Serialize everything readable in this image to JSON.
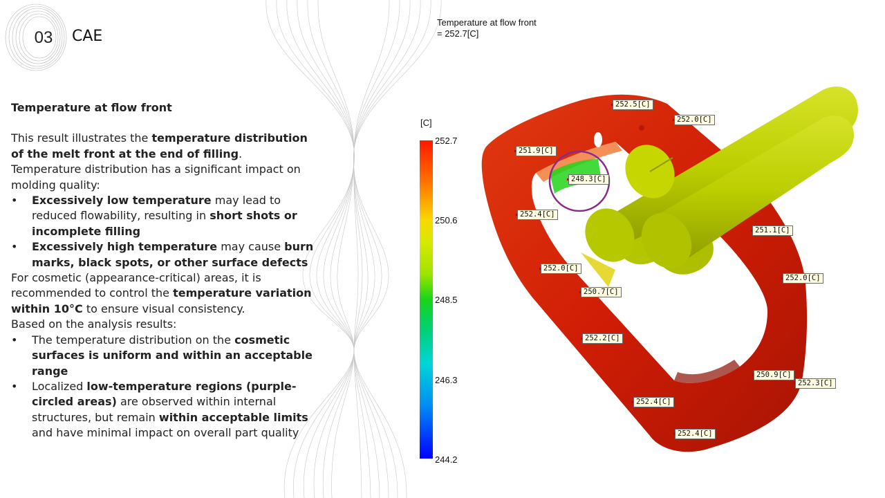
{
  "header": {
    "number": "03",
    "title": "CAE"
  },
  "content": {
    "heading": "Temperature at flow front",
    "intro": {
      "pre": "This result illustrates the ",
      "bold": "temperature distribution of the melt front at the end of filling",
      "post": "."
    },
    "impact": "Temperature distribution has a significant impact on molding quality:",
    "risks": [
      {
        "bold1": "Excessively low temperature",
        "mid": " may lead to reduced flowability, resulting in ",
        "bold2": "short shots or incomplete filling",
        "post": ""
      },
      {
        "bold1": "Excessively high temperature",
        "mid": " may cause ",
        "bold2": "burn marks, black spots, or other surface defects",
        "post": ""
      }
    ],
    "recommend": {
      "pre": "For cosmetic (appearance-critical) areas, it is recommended to control the ",
      "bold": "temperature variation within 10°C",
      "post": " to ensure visual consistency."
    },
    "based": "Based on the analysis results:",
    "findings": [
      {
        "pre": "The temperature distribution on the ",
        "bold": "cosmetic surfaces is uniform and within an acceptable range",
        "post": ""
      },
      {
        "pre": "Localized ",
        "bold": "low-temperature regions (purple-circled areas)",
        "mid": " are observed within internal structures, but remain ",
        "bold2": "within acceptable limits",
        "post": " and have minimal impact on overall part quality"
      }
    ]
  },
  "simulation": {
    "result_title": "Temperature at flow front",
    "result_value": " = 252.7[C]",
    "unit": "[C]",
    "ticks": [
      "252.7",
      "250.6",
      "248.5",
      "246.3",
      "244.2"
    ],
    "probes": [
      "252.5[C]",
      "252.0[C]",
      "251.9[C]",
      "248.3[C]",
      "252.4[C]",
      "251.1[C]",
      "252.0[C]",
      "252.0[C]",
      "250.7[C]",
      "252.2[C]",
      "250.9[C]",
      "252.3[C]",
      "252.4[C]",
      "252.4[C]"
    ],
    "colors": {
      "hot": "#d81d05",
      "warm": "#f06010",
      "runner": "#bccf00",
      "cool": "#22d41a",
      "highlight": "#8a2a8a"
    }
  }
}
